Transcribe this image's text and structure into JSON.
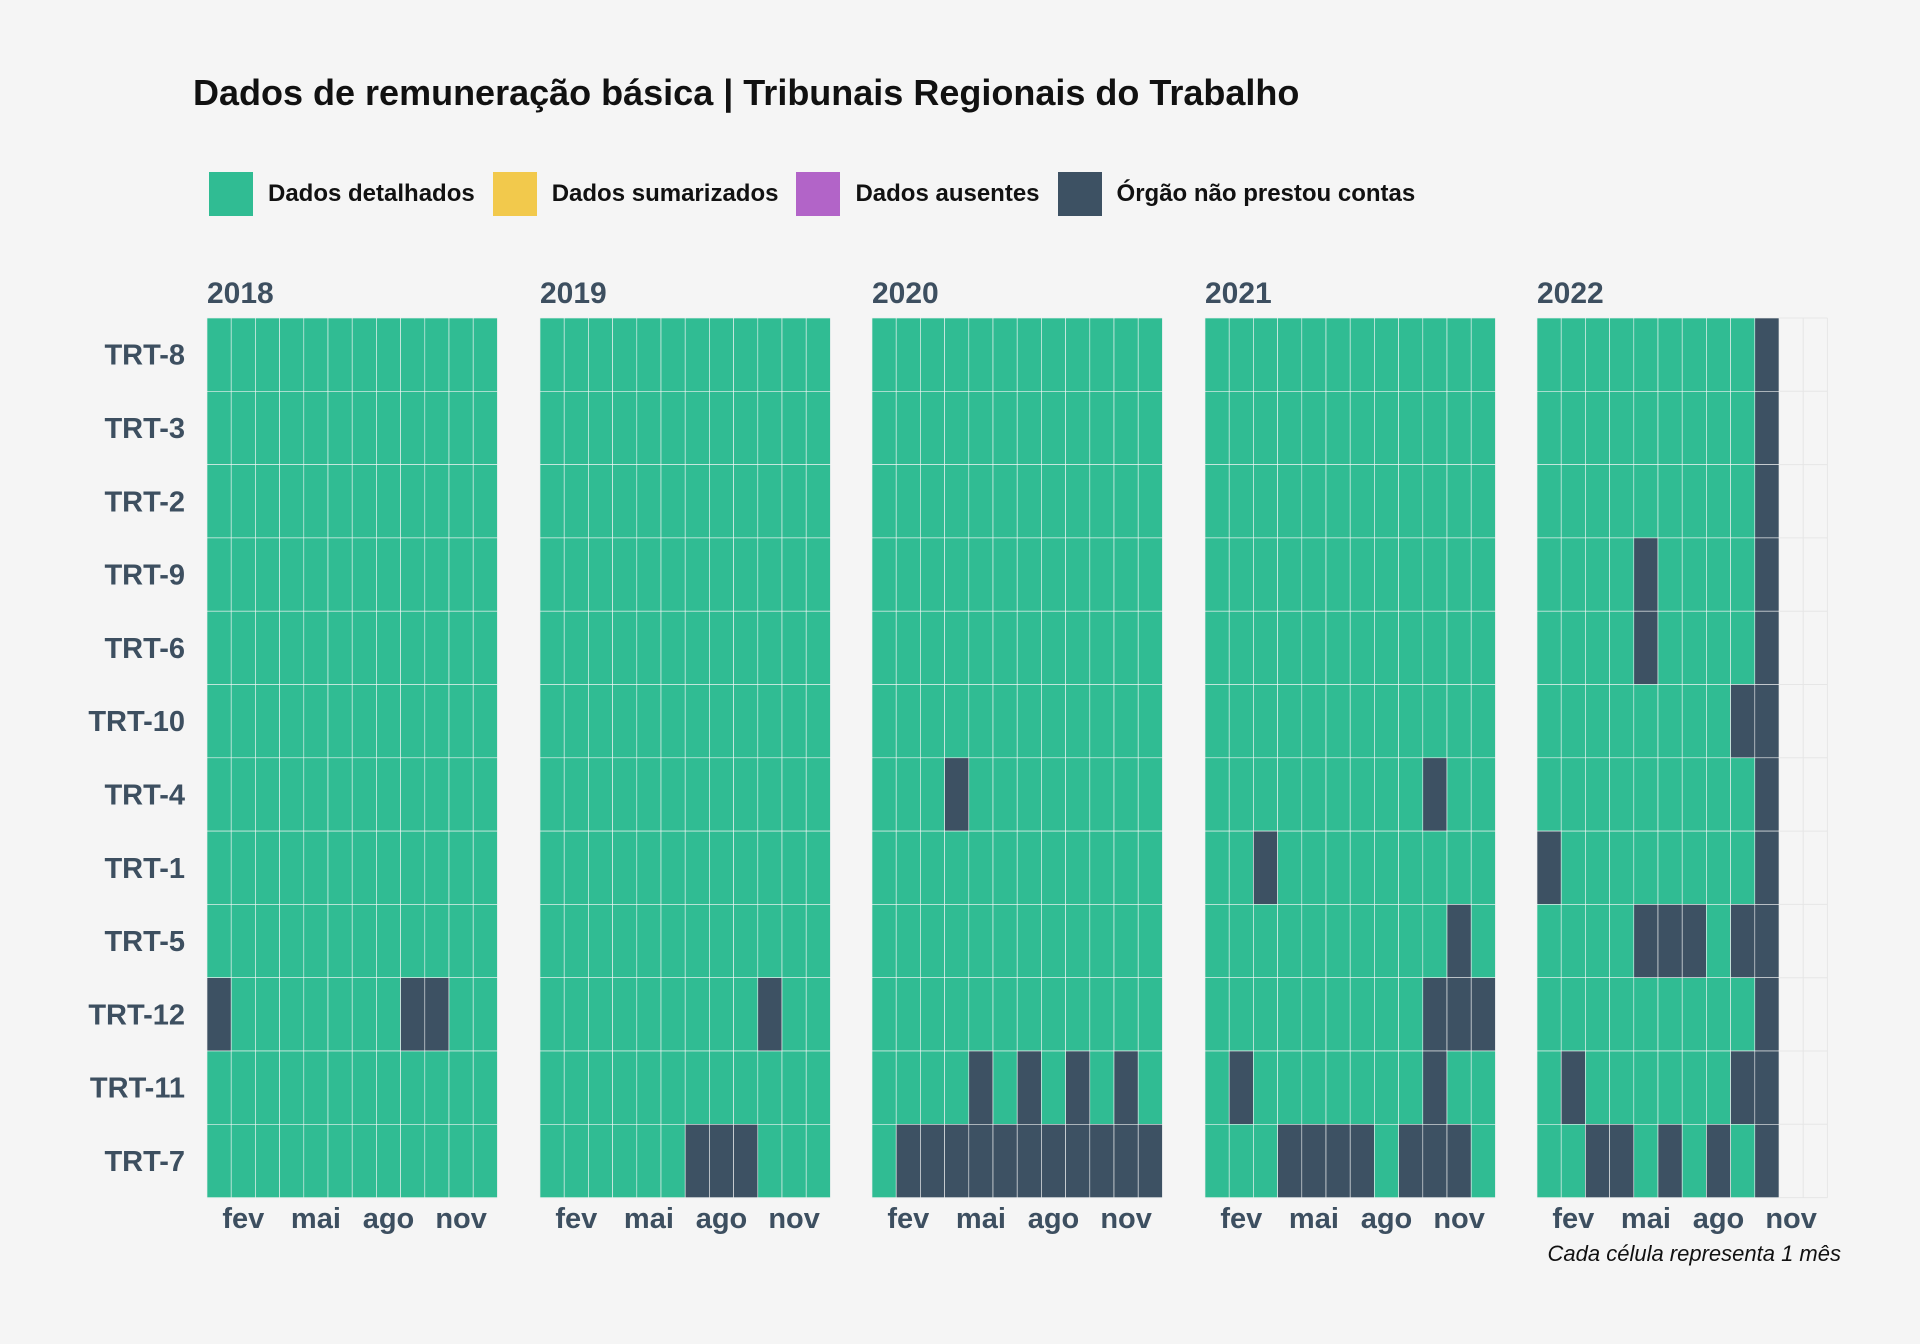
{
  "chart_data": {
    "type": "heatmap",
    "title": "Dados de remuneração básica | Tribunais Regionais do Trabalho",
    "caption": "Cada célula representa 1 mês",
    "legend": {
      "placement": "top-left",
      "entries": [
        {
          "key": "D",
          "label": "Dados detalhados",
          "color": "#30bc93"
        },
        {
          "key": "S",
          "label": "Dados sumarizados",
          "color": "#f2c94c"
        },
        {
          "key": "A",
          "label": "Dados ausentes",
          "color": "#b264c8"
        },
        {
          "key": "N",
          "label": "Órgão não prestou contas",
          "color": "#3d5163"
        }
      ]
    },
    "years": [
      "2018",
      "2019",
      "2020",
      "2021",
      "2022"
    ],
    "month_tick_labels": [
      {
        "month": 2,
        "label": "fev"
      },
      {
        "month": 5,
        "label": "mai"
      },
      {
        "month": 8,
        "label": "ago"
      },
      {
        "month": 11,
        "label": "nov"
      }
    ],
    "rows": [
      "TRT-8",
      "TRT-3",
      "TRT-2",
      "TRT-9",
      "TRT-6",
      "TRT-10",
      "TRT-4",
      "TRT-1",
      "TRT-5",
      "TRT-12",
      "TRT-11",
      "TRT-7"
    ],
    "status": {
      "2018": {
        "TRT-8": "DDDDDDDDDDDD",
        "TRT-3": "DDDDDDDDDDDD",
        "TRT-2": "DDDDDDDDDDDD",
        "TRT-9": "DDDDDDDDDDDD",
        "TRT-6": "DDDDDDDDDDDD",
        "TRT-10": "DDDDDDDDDDDD",
        "TRT-4": "DDDDDDDDDDDD",
        "TRT-1": "DDDDDDDDDDDD",
        "TRT-5": "DDDDDDDDDDDD",
        "TRT-12": "NDDDDDDDNNDD",
        "TRT-11": "DDDDDDDDDDDD",
        "TRT-7": "DDDDDDDDDDDD"
      },
      "2019": {
        "TRT-8": "DDDDDDDDDDDD",
        "TRT-3": "DDDDDDDDDDDD",
        "TRT-2": "DDDDDDDDDDDD",
        "TRT-9": "DDDDDDDDDDDD",
        "TRT-6": "DDDDDDDDDDDD",
        "TRT-10": "DDDDDDDDDDDD",
        "TRT-4": "DDDDDDDDDDDD",
        "TRT-1": "DDDDDDDDDDDD",
        "TRT-5": "DDDDDDDDDDDD",
        "TRT-12": "DDDDDDDDDNDD",
        "TRT-11": "DDDDDDDDDDDD",
        "TRT-7": "DDDDDDNNNDDD"
      },
      "2020": {
        "TRT-8": "DDDDDDDDDDDD",
        "TRT-3": "DDDDDDDDDDDD",
        "TRT-2": "DDDDDDDDDDDD",
        "TRT-9": "DDDDDDDDDDDD",
        "TRT-6": "DDDDDDDDDDDD",
        "TRT-10": "DDDDDDDDDDDD",
        "TRT-4": "DDDNDDDDDDDD",
        "TRT-1": "DDDDDDDDDDDD",
        "TRT-5": "DDDDDDDDDDDD",
        "TRT-12": "DDDDDDDDDDDD",
        "TRT-11": "DDDDNDNDNDND",
        "TRT-7": "DNNNNNNNNNNN"
      },
      "2021": {
        "TRT-8": "DDDDDDDDDDDD",
        "TRT-3": "DDDDDDDDDDDD",
        "TRT-2": "DDDDDDDDDDDD",
        "TRT-9": "DDDDDDDDDDDD",
        "TRT-6": "DDDDDDDDDDDD",
        "TRT-10": "DDDDDDDDDDDD",
        "TRT-4": "DDDDDDDDDNDD",
        "TRT-1": "DDNDDDDDDDDD",
        "TRT-5": "DDDDDDDDDDND",
        "TRT-12": "DDDDDDDDDNNN",
        "TRT-11": "DNDDDDDDDNDD",
        "TRT-7": "DDDNNNNDNNND"
      },
      "2022": {
        "TRT-8": "DDDDDDDDDN",
        "TRT-3": "DDDDDDDDDN",
        "TRT-2": "DDDDDDDDDN",
        "TRT-9": "DDDDNDDDDN",
        "TRT-6": "DDDDNDDDDN",
        "TRT-10": "DDDDDDDDNN",
        "TRT-4": "DDDDDDDDDN",
        "TRT-1": "NDDDDDDDDN",
        "TRT-5": "DDDDNNNDNN",
        "TRT-12": "DDDDDDDDDN",
        "TRT-11": "DNDDDDDDNN",
        "TRT-7": "DDNNDNDNDN"
      }
    }
  }
}
